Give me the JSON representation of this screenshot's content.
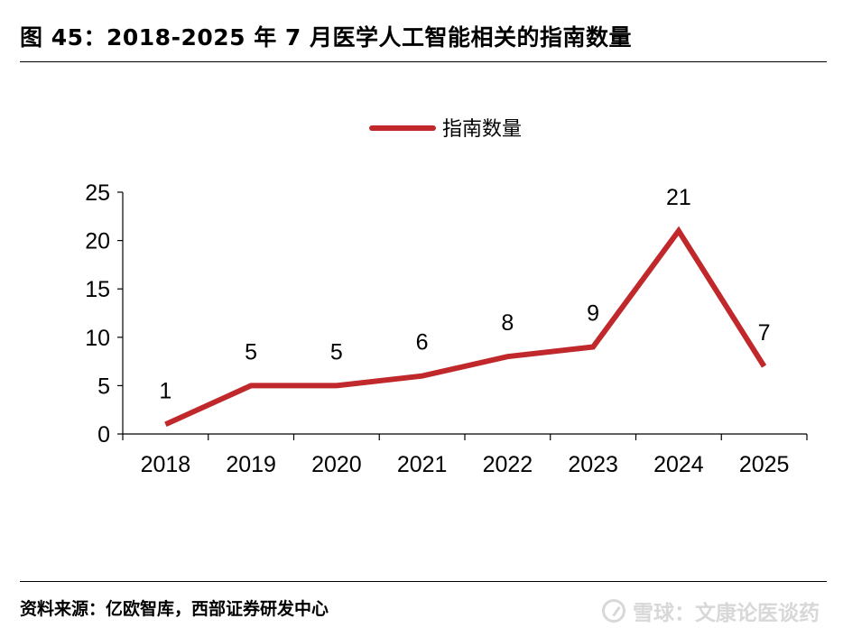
{
  "figure": {
    "title": "图 45：2018-2025 年 7 月医学人工智能相关的指南数量",
    "source": "资料来源：亿欧智库，西部证券研发中心",
    "watermark": "雪球：文康论医谈药"
  },
  "chart_data": {
    "type": "line",
    "categories": [
      "2018",
      "2019",
      "2020",
      "2021",
      "2022",
      "2023",
      "2024",
      "2025"
    ],
    "series": [
      {
        "name": "指南数量",
        "values": [
          1,
          5,
          5,
          6,
          8,
          9,
          21,
          7
        ],
        "color": "#c0282b"
      }
    ],
    "data_labels": [
      "1",
      "5",
      "5",
      "6",
      "8",
      "9",
      "21",
      "7"
    ],
    "yticks": [
      "0",
      "5",
      "10",
      "15",
      "20",
      "25"
    ],
    "ylim": [
      0,
      25
    ],
    "xlabel": "",
    "ylabel": "",
    "legend_position": "top-center",
    "grid": false
  }
}
